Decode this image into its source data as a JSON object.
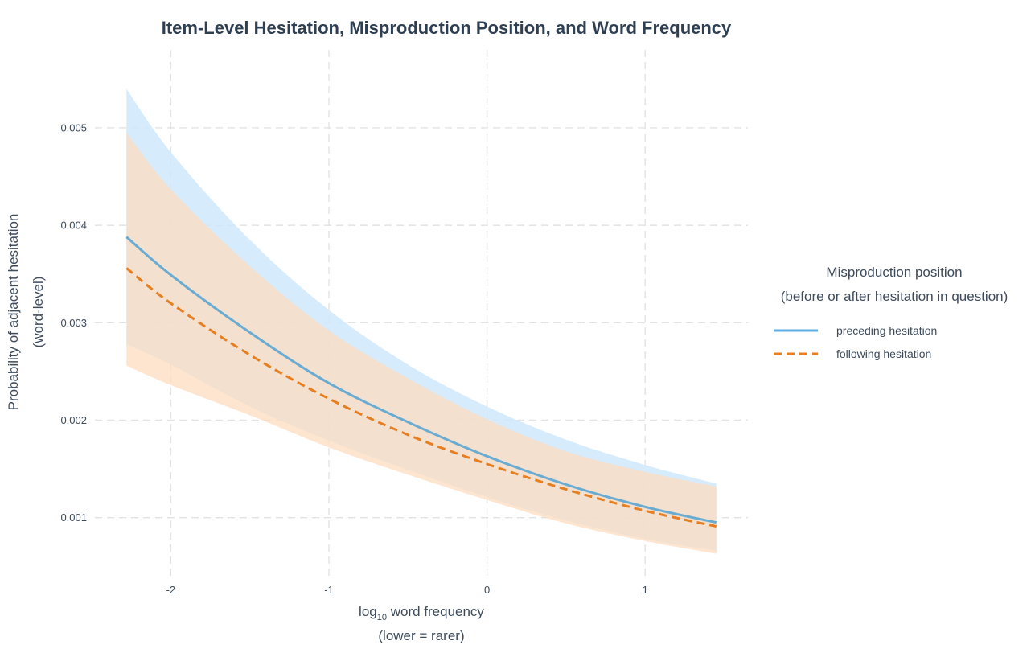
{
  "chart_data": {
    "type": "line",
    "title": "Item-Level Hesitation, Misproduction Position, and Word Frequency",
    "xlabel_main": "log",
    "xlabel_sub": "10",
    "xlabel_rest": " word frequency",
    "xlabel_line2": "(lower = rarer)",
    "ylabel_line1": "Probability of adjacent hesitation",
    "ylabel_line2": "(word-level)",
    "xlim": [
      -2.48,
      1.65
    ],
    "ylim": [
      0.00037,
      0.0058
    ],
    "x_ticks": [
      {
        "value": -2,
        "label": "-2"
      },
      {
        "value": -1,
        "label": "-1"
      },
      {
        "value": 0,
        "label": "0"
      },
      {
        "value": 1,
        "label": "1"
      }
    ],
    "y_ticks": [
      {
        "value": 0.001,
        "label": "0.001"
      },
      {
        "value": 0.002,
        "label": "0.002"
      },
      {
        "value": 0.003,
        "label": "0.003"
      },
      {
        "value": 0.004,
        "label": "0.004"
      },
      {
        "value": 0.005,
        "label": "0.005"
      }
    ],
    "grid": true,
    "legend": {
      "title_line1": "Misproduction position",
      "title_line2": "(before or after hesitation in question)",
      "placement": "right"
    },
    "series": [
      {
        "name": "preceding hesitation",
        "color": "#5dade2",
        "line_color": "#6aabd2",
        "band_color": "#cfe9fb",
        "dash": "solid",
        "x": [
          -2.28,
          -2.0,
          -1.5,
          -1.0,
          -0.5,
          0.0,
          0.5,
          1.0,
          1.45
        ],
        "y": [
          0.00388,
          0.00349,
          0.0029,
          0.00238,
          0.00198,
          0.00163,
          0.00134,
          0.00111,
          0.00095
        ],
        "lower": [
          0.00278,
          0.00257,
          0.00214,
          0.00179,
          0.00149,
          0.00121,
          0.00097,
          0.00078,
          0.00066
        ],
        "upper": [
          0.0054,
          0.00475,
          0.00385,
          0.00313,
          0.00257,
          0.00214,
          0.0018,
          0.00154,
          0.00135
        ]
      },
      {
        "name": "following hesitation",
        "color": "#e67e22",
        "line_color": "#e67e22",
        "band_color": "#fcdcc0",
        "dash": "dashed",
        "x": [
          -2.28,
          -2.0,
          -1.5,
          -1.0,
          -0.5,
          0.0,
          0.5,
          1.0,
          1.45
        ],
        "y": [
          0.00356,
          0.0032,
          0.00267,
          0.00222,
          0.00185,
          0.00155,
          0.00129,
          0.00107,
          0.00091
        ],
        "lower": [
          0.00256,
          0.00236,
          0.00205,
          0.00172,
          0.00144,
          0.00118,
          0.00094,
          0.00076,
          0.00063
        ],
        "upper": [
          0.00495,
          0.00437,
          0.00358,
          0.00292,
          0.00243,
          0.00201,
          0.00168,
          0.00147,
          0.00132
        ]
      }
    ]
  }
}
